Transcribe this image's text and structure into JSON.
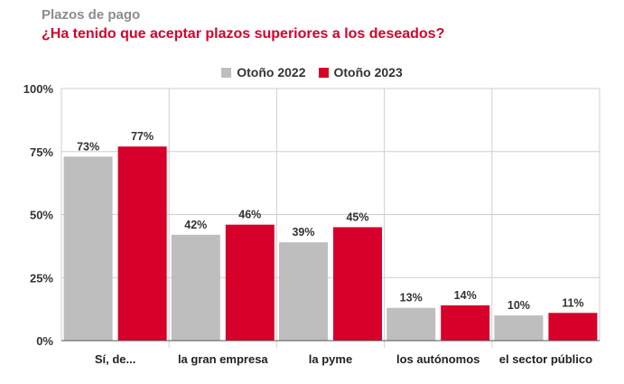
{
  "header": {
    "title": "Plazos de pago",
    "subtitle": "¿Ha tenido que aceptar plazos superiores a los deseados?"
  },
  "colors": {
    "series1": "#bebebe",
    "series2": "#d6002a",
    "grid": "#cfcfcf",
    "axis": "#555555"
  },
  "chart_data": {
    "type": "bar",
    "title": "¿Ha tenido que aceptar plazos superiores a los deseados?",
    "categories": [
      "Sí, de...",
      "la gran empresa",
      "la pyme",
      "los autónomos",
      "el sector público"
    ],
    "series": [
      {
        "name": "Otoño 2022",
        "values": [
          73,
          42,
          39,
          13,
          10
        ],
        "labels": [
          "73%",
          "42%",
          "39%",
          "13%",
          "10%"
        ]
      },
      {
        "name": "Otoño 2023",
        "values": [
          77,
          46,
          45,
          14,
          11
        ],
        "labels": [
          "77%",
          "46%",
          "45%",
          "14%",
          "11%"
        ]
      }
    ],
    "ylim": [
      0,
      100
    ],
    "yticks": [
      0,
      25,
      50,
      75,
      100
    ],
    "ytick_labels": [
      "0%",
      "25%",
      "50%",
      "75%",
      "100%"
    ],
    "grid": true,
    "legend_position": "top-center"
  }
}
